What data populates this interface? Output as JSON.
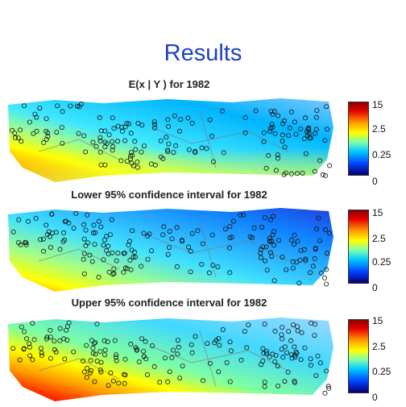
{
  "slide_title": "Results",
  "panels": [
    {
      "title": "E(x | Y ) for 1982"
    },
    {
      "title": "Lower 95% confidence interval for 1982"
    },
    {
      "title": "Upper 95% confidence interval for 1982"
    }
  ],
  "colorbar_ticks": [
    "15",
    "2.5",
    "0.25",
    "0"
  ],
  "colors": {
    "title": "#1f3fc6",
    "scale": [
      "#08006b",
      "#0040ff",
      "#00c8ff",
      "#7cffb0",
      "#ffff00",
      "#ff9a00",
      "#e60000",
      "#8a0000"
    ]
  }
}
